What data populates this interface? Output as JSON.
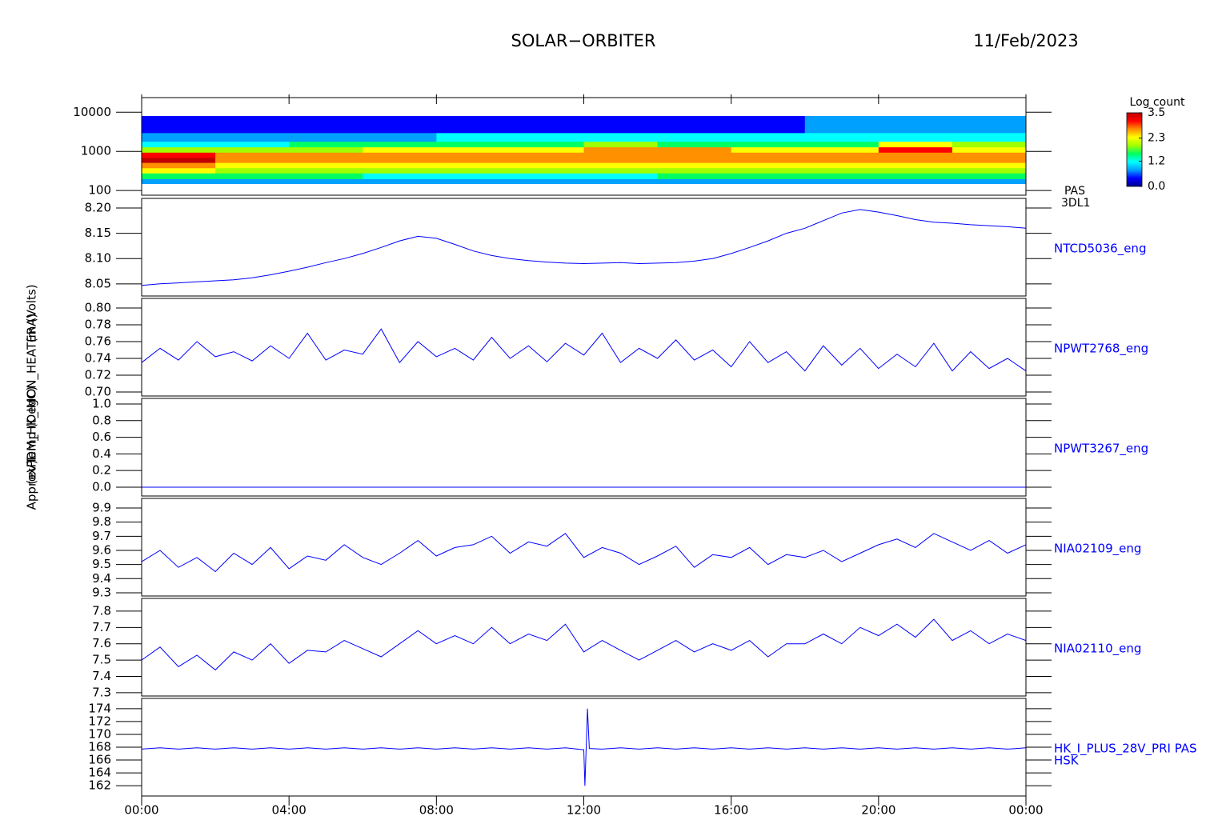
{
  "header": {
    "title": "SOLAR−ORBITER",
    "date": "11/Feb/2023"
  },
  "chart_data": [
    {
      "type": "heatmap",
      "ylabel": "(eV)",
      "label": "PAS",
      "sublabel": "3DL1",
      "log_y": true,
      "x": [
        0,
        2,
        4,
        6,
        8,
        10,
        12,
        14,
        16,
        18,
        20,
        22,
        24
      ],
      "y": [
        150,
        200,
        280,
        380,
        520,
        700,
        950,
        1300,
        1800,
        3000,
        8000
      ],
      "z": [
        [
          0.8,
          1.5,
          2.2,
          2.8,
          3.4,
          3.0,
          2.0,
          1.3,
          0.9,
          0.5
        ],
        [
          0.8,
          1.5,
          2.1,
          2.5,
          2.8,
          2.7,
          2.0,
          1.3,
          0.9,
          0.5
        ],
        [
          0.8,
          1.4,
          2.0,
          2.4,
          2.7,
          2.8,
          2.1,
          1.4,
          0.9,
          0.5
        ],
        [
          0.7,
          1.3,
          1.9,
          2.3,
          2.6,
          2.8,
          2.2,
          1.4,
          0.9,
          0.4
        ],
        [
          0.6,
          1.2,
          1.8,
          2.2,
          2.6,
          2.7,
          2.3,
          1.5,
          1.0,
          0.3
        ],
        [
          0.7,
          1.3,
          1.9,
          2.3,
          2.6,
          2.8,
          2.4,
          1.6,
          1.0,
          0.4
        ],
        [
          0.7,
          1.3,
          1.9,
          2.3,
          2.6,
          2.9,
          2.9,
          1.8,
          1.1,
          0.5
        ],
        [
          0.8,
          1.4,
          2.0,
          2.4,
          2.7,
          2.9,
          2.6,
          1.7,
          1.1,
          0.5
        ],
        [
          0.8,
          1.4,
          2.0,
          2.5,
          2.8,
          2.7,
          2.2,
          1.5,
          1.0,
          0.5
        ],
        [
          0.8,
          1.4,
          2.0,
          2.4,
          2.6,
          2.7,
          2.4,
          1.7,
          1.1,
          0.6
        ],
        [
          0.8,
          1.4,
          2.0,
          2.4,
          2.6,
          2.8,
          3.0,
          2.2,
          1.3,
          0.6
        ],
        [
          0.8,
          1.4,
          2.0,
          2.4,
          2.6,
          2.8,
          2.4,
          1.8,
          1.2,
          0.6
        ]
      ],
      "xlim": [
        0,
        24
      ],
      "ylim": [
        76,
        23600
      ],
      "yticks": [
        100,
        1000,
        10000
      ],
      "colorbar_title": "Log count",
      "zlim": [
        0,
        3.5
      ],
      "zticks": [
        {
          "value": 0,
          "label": "0.0"
        },
        1.2,
        2.3,
        3.5
      ],
      "colorscale": [
        "#000090",
        "#0000ff",
        "#00a0ff",
        "#00ffff",
        "#00ff60",
        "#a0ff00",
        "#ffff00",
        "#ff9000",
        "#ff0000",
        "#c00000"
      ]
    },
    {
      "type": "line",
      "ylabel": "Approx Temp (DegC)",
      "xlim": [
        0,
        24
      ],
      "ylim": [
        8.026,
        8.219
      ],
      "yticks": [
        {
          "value": 8.05,
          "label": "8.05"
        },
        {
          "value": 8.1,
          "label": "8.10"
        },
        {
          "value": 8.15,
          "label": "8.15"
        },
        {
          "value": 8.2,
          "label": "8.20"
        }
      ],
      "x": [
        0,
        0.5,
        1,
        1.5,
        2,
        2.5,
        3,
        3.5,
        4,
        4.5,
        5,
        5.5,
        6,
        6.5,
        7,
        7.5,
        8,
        8.5,
        9,
        9.5,
        10,
        10.5,
        11,
        11.5,
        12,
        12.5,
        13,
        13.5,
        14,
        14.5,
        15,
        15.5,
        16,
        16.5,
        17,
        17.5,
        18,
        18.5,
        19,
        19.5,
        20,
        20.5,
        21,
        21.5,
        22,
        22.5,
        23,
        23.5,
        24
      ],
      "series": [
        {
          "name": "NTCD5036_eng",
          "color": "#0000ff",
          "values": [
            8.047,
            8.05,
            8.052,
            8.054,
            8.056,
            8.058,
            8.062,
            8.068,
            8.075,
            8.083,
            8.092,
            8.1,
            8.11,
            8.122,
            8.135,
            8.144,
            8.14,
            8.128,
            8.115,
            8.106,
            8.1,
            8.096,
            8.093,
            8.091,
            8.09,
            8.091,
            8.092,
            8.09,
            8.091,
            8.092,
            8.095,
            8.1,
            8.11,
            8.122,
            8.135,
            8.15,
            8.16,
            8.175,
            8.19,
            8.197,
            8.192,
            8.185,
            8.177,
            8.172,
            8.17,
            8.167,
            8.165,
            8.163,
            8.16
          ]
        }
      ]
    },
    {
      "type": "line",
      "xlim": [
        0,
        24
      ],
      "ylim": [
        0.6952,
        0.8114
      ],
      "yticks": [
        {
          "value": 0.7,
          "label": "0.70"
        },
        0.72,
        0.74,
        0.76,
        0.78,
        {
          "value": 0.8,
          "label": "0.80"
        }
      ],
      "x": [
        0,
        0.5,
        1,
        1.5,
        2,
        2.5,
        3,
        3.5,
        4,
        4.5,
        5,
        5.5,
        6,
        6.5,
        7,
        7.5,
        8,
        8.5,
        9,
        9.5,
        10,
        10.5,
        11,
        11.5,
        12,
        12.5,
        13,
        13.5,
        14,
        14.5,
        15,
        15.5,
        16,
        16.5,
        17,
        17.5,
        18,
        18.5,
        19,
        19.5,
        20,
        20.5,
        21,
        21.5,
        22,
        22.5,
        23,
        23.5,
        24
      ],
      "series": [
        {
          "name": "NPWT2768_eng",
          "color": "#0000ff",
          "values": [
            0.735,
            0.752,
            0.738,
            0.76,
            0.742,
            0.748,
            0.737,
            0.755,
            0.74,
            0.77,
            0.738,
            0.75,
            0.745,
            0.775,
            0.735,
            0.76,
            0.742,
            0.752,
            0.738,
            0.765,
            0.74,
            0.755,
            0.736,
            0.758,
            0.744,
            0.77,
            0.735,
            0.752,
            0.74,
            0.762,
            0.738,
            0.75,
            0.73,
            0.76,
            0.735,
            0.748,
            0.725,
            0.755,
            0.732,
            0.752,
            0.728,
            0.745,
            0.73,
            0.758,
            0.725,
            0.748,
            0.728,
            0.74,
            0.725
          ]
        }
      ]
    },
    {
      "type": "line",
      "xlim": [
        0,
        24
      ],
      "ylim": [
        -0.106,
        1.067
      ],
      "yticks": [
        {
          "value": 0,
          "label": "0.0"
        },
        0.2,
        0.4,
        0.6,
        0.8,
        {
          "value": 1,
          "label": "1.0"
        }
      ],
      "x": [
        0,
        0.5,
        1,
        1.5,
        2,
        2.5,
        3,
        3.5,
        4,
        4.5,
        5,
        5.5,
        6,
        6.5,
        7,
        7.5,
        8,
        8.5,
        9,
        9.5,
        10,
        10.5,
        11,
        11.5,
        12,
        12.5,
        13,
        13.5,
        14,
        14.5,
        15,
        15.5,
        16,
        16.5,
        17,
        17.5,
        18,
        18.5,
        19,
        19.5,
        20,
        20.5,
        21,
        21.5,
        22,
        22.5,
        23,
        23.5,
        24
      ],
      "series": [
        {
          "name": "NPWT3267_eng",
          "color": "#0000ff",
          "values": [
            0,
            0,
            0,
            0,
            0,
            0,
            0,
            0,
            0,
            0,
            0,
            0,
            0,
            0,
            0,
            0,
            0,
            0,
            0,
            0,
            0,
            0,
            0,
            0,
            0,
            0,
            0,
            0,
            0,
            0,
            0,
            0,
            0,
            0,
            0,
            0,
            0,
            0,
            0,
            0,
            0,
            0,
            0,
            0,
            0,
            0,
            0,
            0,
            0
          ]
        }
      ]
    },
    {
      "type": "line",
      "ylabel": "PDM_HK_IMON_HEATER (Volts)",
      "xlim": [
        0,
        24
      ],
      "ylim": [
        9.277,
        9.968
      ],
      "yticks": [
        9.3,
        9.4,
        9.5,
        9.6,
        9.7,
        9.8,
        9.9
      ],
      "x": [
        0,
        0.5,
        1,
        1.5,
        2,
        2.5,
        3,
        3.5,
        4,
        4.5,
        5,
        5.5,
        6,
        6.5,
        7,
        7.5,
        8,
        8.5,
        9,
        9.5,
        10,
        10.5,
        11,
        11.5,
        12,
        12.5,
        13,
        13.5,
        14,
        14.5,
        15,
        15.5,
        16,
        16.5,
        17,
        17.5,
        18,
        18.5,
        19,
        19.5,
        20,
        20.5,
        21,
        21.5,
        22,
        22.5,
        23,
        23.5,
        24
      ],
      "series": [
        {
          "name": "NIA02109_eng",
          "color": "#0000ff",
          "values": [
            9.52,
            9.6,
            9.48,
            9.55,
            9.45,
            9.58,
            9.5,
            9.62,
            9.47,
            9.56,
            9.53,
            9.64,
            9.55,
            9.5,
            9.58,
            9.67,
            9.56,
            9.62,
            9.64,
            9.7,
            9.58,
            9.66,
            9.63,
            9.72,
            9.55,
            9.62,
            9.58,
            9.5,
            9.56,
            9.63,
            9.48,
            9.57,
            9.55,
            9.62,
            9.5,
            9.57,
            9.55,
            9.6,
            9.52,
            9.58,
            9.64,
            9.68,
            9.62,
            9.72,
            9.66,
            9.6,
            9.67,
            9.58,
            9.64
          ]
        }
      ]
    },
    {
      "type": "line",
      "xlim": [
        0,
        24
      ],
      "ylim": [
        7.28,
        7.878
      ],
      "yticks": [
        7.3,
        7.4,
        7.5,
        7.6,
        7.7,
        7.8
      ],
      "x": [
        0,
        0.5,
        1,
        1.5,
        2,
        2.5,
        3,
        3.5,
        4,
        4.5,
        5,
        5.5,
        6,
        6.5,
        7,
        7.5,
        8,
        8.5,
        9,
        9.5,
        10,
        10.5,
        11,
        11.5,
        12,
        12.5,
        13,
        13.5,
        14,
        14.5,
        15,
        15.5,
        16,
        16.5,
        17,
        17.5,
        18,
        18.5,
        19,
        19.5,
        20,
        20.5,
        21,
        21.5,
        22,
        22.5,
        23,
        23.5,
        24
      ],
      "series": [
        {
          "name": "NIA02110_eng",
          "color": "#0000ff",
          "values": [
            7.5,
            7.58,
            7.46,
            7.53,
            7.44,
            7.55,
            7.5,
            7.6,
            7.48,
            7.56,
            7.55,
            7.62,
            7.57,
            7.52,
            7.6,
            7.68,
            7.6,
            7.65,
            7.6,
            7.7,
            7.6,
            7.66,
            7.62,
            7.72,
            7.55,
            7.62,
            7.56,
            7.5,
            7.56,
            7.62,
            7.55,
            7.6,
            7.56,
            7.62,
            7.52,
            7.6,
            7.6,
            7.66,
            7.6,
            7.7,
            7.65,
            7.72,
            7.64,
            7.75,
            7.62,
            7.68,
            7.6,
            7.66,
            7.62
          ]
        }
      ]
    },
    {
      "type": "line",
      "ylabel": "(mA)",
      "sublabel": "HSK",
      "xlim": [
        0,
        24
      ],
      "ylim": [
        160.4,
        175.6
      ],
      "yticks": [
        162,
        164,
        166,
        168,
        170,
        172,
        174
      ],
      "xticks": [
        {
          "value": 0,
          "label": "00:00"
        },
        {
          "value": 4,
          "label": "04:00"
        },
        {
          "value": 8,
          "label": "08:00"
        },
        {
          "value": 12,
          "label": "12:00"
        },
        {
          "value": 16,
          "label": "16:00"
        },
        {
          "value": 20,
          "label": "20:00"
        },
        {
          "value": 24,
          "label": "00:00"
        }
      ],
      "x": [
        0,
        0.5,
        1,
        1.5,
        2,
        2.5,
        3,
        3.5,
        4,
        4.5,
        5,
        5.5,
        6,
        6.5,
        7,
        7.5,
        8,
        8.5,
        9,
        9.5,
        10,
        10.5,
        11,
        11.5,
        12,
        12.03,
        12.1,
        12.15,
        12.5,
        13,
        13.5,
        14,
        14.5,
        15,
        15.5,
        16,
        16.5,
        17,
        17.5,
        18,
        18.5,
        19,
        19.5,
        20,
        20.5,
        21,
        21.5,
        22,
        22.5,
        23,
        23.5,
        24
      ],
      "series": [
        {
          "name": "HK_I_PLUS_28V_PRI PAS",
          "color": "#0000ff",
          "values": [
            167.7,
            167.9,
            167.7,
            167.9,
            167.7,
            167.9,
            167.7,
            167.9,
            167.7,
            167.9,
            167.7,
            167.9,
            167.7,
            167.9,
            167.7,
            167.9,
            167.7,
            167.9,
            167.7,
            167.9,
            167.7,
            167.9,
            167.7,
            167.9,
            167.6,
            162.0,
            174.0,
            167.8,
            167.7,
            167.9,
            167.7,
            167.9,
            167.7,
            167.9,
            167.7,
            167.9,
            167.7,
            167.9,
            167.7,
            167.9,
            167.7,
            167.9,
            167.7,
            167.9,
            167.7,
            167.9,
            167.7,
            167.9,
            167.7,
            167.9,
            167.7,
            167.9
          ]
        }
      ]
    }
  ]
}
